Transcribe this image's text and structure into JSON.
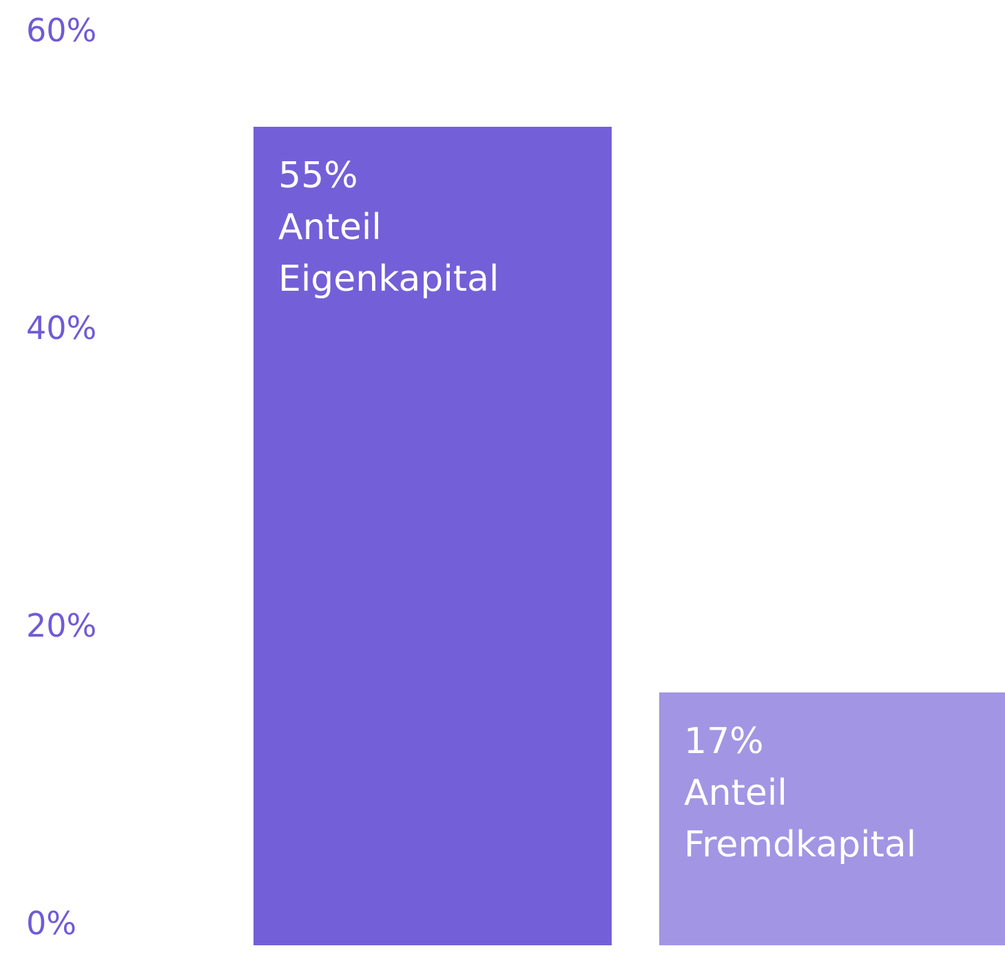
{
  "chart_data": {
    "type": "bar",
    "categories": [
      "Anteil Eigenkapital",
      "Anteil Fremdkapital"
    ],
    "values": [
      55,
      17
    ],
    "value_labels": [
      "55%",
      "17%"
    ],
    "colors": [
      "#7360d8",
      "#a295e3"
    ],
    "ylim": [
      0,
      60
    ],
    "yticks": [
      {
        "value": 0,
        "label": "0%"
      },
      {
        "value": 20,
        "label": "20%"
      },
      {
        "value": 40,
        "label": "40%"
      },
      {
        "value": 60,
        "label": "60%"
      }
    ],
    "grid": false
  }
}
